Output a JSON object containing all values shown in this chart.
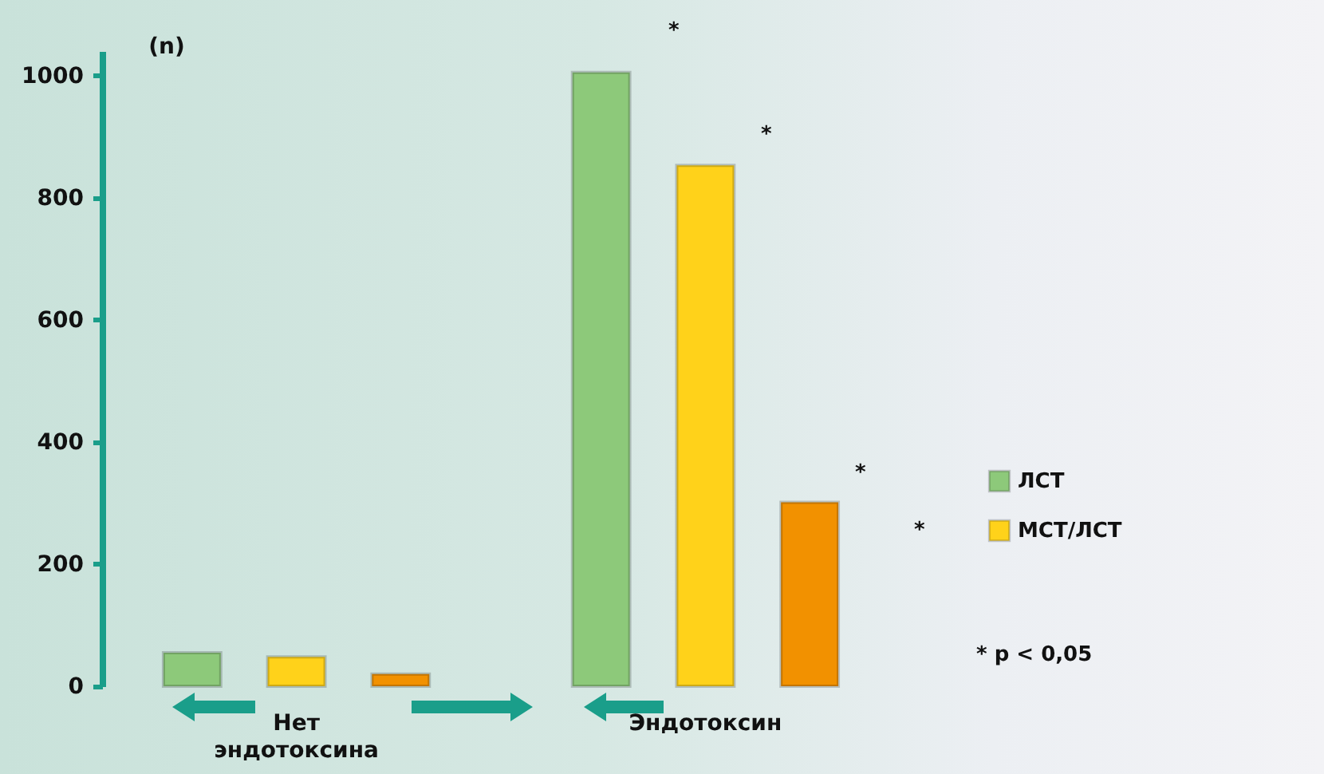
{
  "chart_data": {
    "type": "bar",
    "ylabel": "(n)",
    "categories": [
      "Нет эндотоксина",
      "Эндотоксин"
    ],
    "series": [
      {
        "name": "ЛСТ",
        "color": "#8dc97a",
        "values": [
          55,
          1005
        ]
      },
      {
        "name": "МСТ/ЛСТ",
        "color": "#ffd21a",
        "values": [
          48,
          853
        ]
      },
      {
        "color": "#f29100",
        "values": [
          20,
          301
        ]
      }
    ],
    "ylim": [
      0,
      1040
    ],
    "yticks": [
      0,
      200,
      400,
      600,
      800,
      1000
    ],
    "grid": false,
    "legend": "right",
    "annotations": [
      "*",
      "*",
      "*",
      "*",
      "* p < 0,05"
    ]
  }
}
